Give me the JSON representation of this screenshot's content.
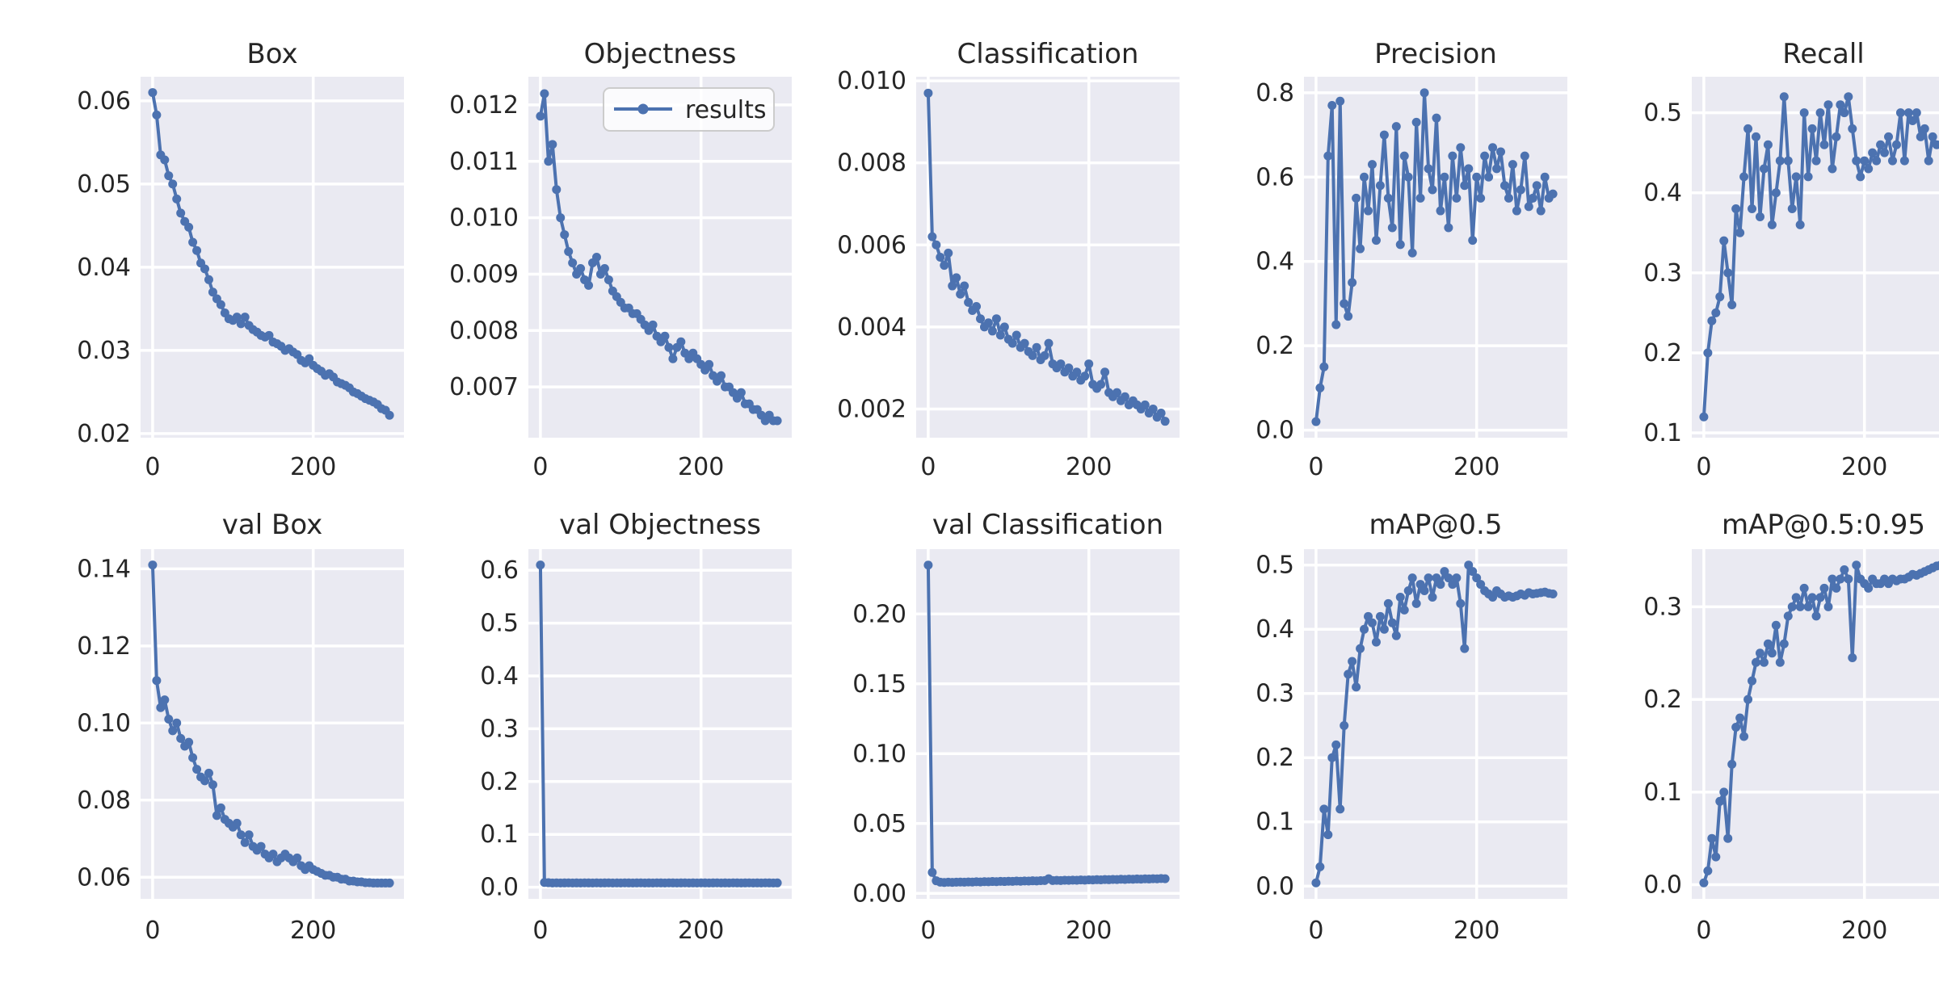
{
  "style": {
    "line_color": "#4c72b0",
    "axes_bg": "#eaeaf2",
    "grid_color": "#ffffff",
    "text_color": "#262626",
    "figure_bg": "#ffffff",
    "legend_bg": "rgba(255,255,255,0.8)",
    "legend_border": "#cccccc"
  },
  "chart_data": {
    "type": "line",
    "series_name": "results",
    "legend_position": "upper right of Objectness subplot",
    "grid": true,
    "xlim": [
      -15,
      313
    ],
    "xticks": [
      0,
      200
    ],
    "xtick_labels": [
      "0",
      "200"
    ],
    "epochs": [
      0,
      5,
      10,
      15,
      20,
      25,
      30,
      35,
      40,
      45,
      50,
      55,
      60,
      65,
      70,
      75,
      80,
      85,
      90,
      95,
      100,
      105,
      110,
      115,
      120,
      125,
      130,
      135,
      140,
      145,
      150,
      155,
      160,
      165,
      170,
      175,
      180,
      185,
      190,
      195,
      200,
      205,
      210,
      215,
      220,
      225,
      230,
      235,
      240,
      245,
      250,
      255,
      260,
      265,
      270,
      275,
      280,
      285,
      290,
      295
    ],
    "charts": [
      {
        "title": "Box",
        "row": 0,
        "col": 0,
        "ylim": [
          0.0195,
          0.0629
        ],
        "yticks": [
          0.02,
          0.03,
          0.04,
          0.05,
          0.06
        ],
        "ytick_labels": [
          "0.02",
          "0.03",
          "0.04",
          "0.05",
          "0.06"
        ],
        "values": [
          0.061,
          0.0583,
          0.0535,
          0.0529,
          0.051,
          0.05,
          0.0482,
          0.0465,
          0.0455,
          0.0448,
          0.043,
          0.042,
          0.0405,
          0.0398,
          0.0385,
          0.037,
          0.0362,
          0.0355,
          0.0345,
          0.0338,
          0.0336,
          0.034,
          0.0332,
          0.034,
          0.033,
          0.0325,
          0.0322,
          0.0318,
          0.0316,
          0.0318,
          0.031,
          0.0308,
          0.0305,
          0.03,
          0.0302,
          0.0298,
          0.0295,
          0.0288,
          0.0285,
          0.029,
          0.0282,
          0.0278,
          0.0275,
          0.027,
          0.0272,
          0.0268,
          0.0262,
          0.026,
          0.0258,
          0.0255,
          0.025,
          0.0248,
          0.0245,
          0.0242,
          0.024,
          0.0238,
          0.0235,
          0.023,
          0.0228,
          0.0222
        ]
      },
      {
        "title": "Objectness",
        "row": 0,
        "col": 1,
        "legend": {
          "label": "results"
        },
        "ylim": [
          0.0061,
          0.0125
        ],
        "yticks": [
          0.007,
          0.008,
          0.009,
          0.01,
          0.011,
          0.012
        ],
        "ytick_labels": [
          "0.007",
          "0.008",
          "0.009",
          "0.010",
          "0.011",
          "0.012"
        ],
        "values": [
          0.0118,
          0.0122,
          0.011,
          0.0113,
          0.0105,
          0.01,
          0.0097,
          0.0094,
          0.0092,
          0.009,
          0.0091,
          0.0089,
          0.0088,
          0.0092,
          0.0093,
          0.009,
          0.0091,
          0.0089,
          0.0087,
          0.0086,
          0.0085,
          0.0084,
          0.0084,
          0.0083,
          0.0083,
          0.0082,
          0.0081,
          0.008,
          0.0081,
          0.0079,
          0.0078,
          0.0079,
          0.0077,
          0.0075,
          0.0077,
          0.0078,
          0.0076,
          0.0075,
          0.0076,
          0.0075,
          0.0074,
          0.0073,
          0.0074,
          0.0072,
          0.0071,
          0.0072,
          0.007,
          0.007,
          0.0069,
          0.0068,
          0.0069,
          0.0067,
          0.0067,
          0.0066,
          0.0066,
          0.0065,
          0.0064,
          0.0065,
          0.0064,
          0.0064
        ]
      },
      {
        "title": "Classification",
        "row": 0,
        "col": 2,
        "ylim": [
          0.0013,
          0.0101
        ],
        "yticks": [
          0.002,
          0.004,
          0.006,
          0.008,
          0.01
        ],
        "ytick_labels": [
          "0.002",
          "0.004",
          "0.006",
          "0.008",
          "0.010"
        ],
        "values": [
          0.0097,
          0.0062,
          0.006,
          0.0057,
          0.0055,
          0.0058,
          0.005,
          0.0052,
          0.0048,
          0.005,
          0.0046,
          0.0044,
          0.0045,
          0.0042,
          0.004,
          0.0041,
          0.0039,
          0.0042,
          0.0038,
          0.004,
          0.0037,
          0.0036,
          0.0038,
          0.0035,
          0.0036,
          0.0034,
          0.0033,
          0.0035,
          0.0032,
          0.0033,
          0.0036,
          0.0031,
          0.003,
          0.0031,
          0.0029,
          0.003,
          0.0028,
          0.0029,
          0.0027,
          0.0028,
          0.0031,
          0.0026,
          0.0025,
          0.0026,
          0.0029,
          0.0024,
          0.0023,
          0.0024,
          0.0022,
          0.0023,
          0.0021,
          0.0022,
          0.0021,
          0.002,
          0.0021,
          0.0019,
          0.002,
          0.0018,
          0.0019,
          0.0017
        ]
      },
      {
        "title": "Precision",
        "row": 0,
        "col": 3,
        "ylim": [
          -0.018,
          0.838
        ],
        "yticks": [
          0.0,
          0.2,
          0.4,
          0.6,
          0.8
        ],
        "ytick_labels": [
          "0.0",
          "0.2",
          "0.4",
          "0.6",
          "0.8"
        ],
        "values": [
          0.02,
          0.1,
          0.15,
          0.65,
          0.77,
          0.25,
          0.78,
          0.3,
          0.27,
          0.35,
          0.55,
          0.43,
          0.6,
          0.52,
          0.63,
          0.45,
          0.58,
          0.7,
          0.55,
          0.48,
          0.72,
          0.44,
          0.65,
          0.6,
          0.42,
          0.73,
          0.55,
          0.8,
          0.62,
          0.57,
          0.74,
          0.52,
          0.6,
          0.48,
          0.65,
          0.55,
          0.67,
          0.58,
          0.62,
          0.45,
          0.6,
          0.55,
          0.65,
          0.6,
          0.67,
          0.62,
          0.66,
          0.58,
          0.55,
          0.63,
          0.52,
          0.57,
          0.65,
          0.53,
          0.55,
          0.58,
          0.52,
          0.6,
          0.55,
          0.56
        ]
      },
      {
        "title": "Recall",
        "row": 0,
        "col": 4,
        "ylim": [
          0.094,
          0.545
        ],
        "yticks": [
          0.1,
          0.2,
          0.3,
          0.4,
          0.5
        ],
        "ytick_labels": [
          "0.1",
          "0.2",
          "0.3",
          "0.4",
          "0.5"
        ],
        "values": [
          0.12,
          0.2,
          0.24,
          0.25,
          0.27,
          0.34,
          0.3,
          0.26,
          0.38,
          0.35,
          0.42,
          0.48,
          0.38,
          0.47,
          0.37,
          0.43,
          0.46,
          0.36,
          0.4,
          0.44,
          0.52,
          0.44,
          0.38,
          0.42,
          0.36,
          0.5,
          0.42,
          0.48,
          0.44,
          0.5,
          0.46,
          0.51,
          0.43,
          0.47,
          0.51,
          0.5,
          0.52,
          0.48,
          0.44,
          0.42,
          0.44,
          0.43,
          0.45,
          0.44,
          0.46,
          0.45,
          0.47,
          0.44,
          0.46,
          0.5,
          0.44,
          0.5,
          0.49,
          0.5,
          0.47,
          0.48,
          0.44,
          0.47,
          0.46,
          0.46
        ]
      },
      {
        "title": "val Box",
        "row": 1,
        "col": 0,
        "ylim": [
          0.0544,
          0.1451
        ],
        "yticks": [
          0.06,
          0.08,
          0.1,
          0.12,
          0.14
        ],
        "ytick_labels": [
          "0.06",
          "0.08",
          "0.10",
          "0.12",
          "0.14"
        ],
        "values": [
          0.141,
          0.111,
          0.104,
          0.106,
          0.101,
          0.098,
          0.1,
          0.096,
          0.094,
          0.095,
          0.091,
          0.088,
          0.086,
          0.085,
          0.087,
          0.084,
          0.076,
          0.078,
          0.075,
          0.074,
          0.073,
          0.074,
          0.071,
          0.069,
          0.071,
          0.068,
          0.067,
          0.068,
          0.066,
          0.065,
          0.066,
          0.064,
          0.065,
          0.066,
          0.065,
          0.064,
          0.065,
          0.063,
          0.062,
          0.063,
          0.062,
          0.0615,
          0.061,
          0.0605,
          0.0605,
          0.06,
          0.06,
          0.0595,
          0.0595,
          0.059,
          0.059,
          0.0588,
          0.0588,
          0.0586,
          0.0586,
          0.0585,
          0.0585,
          0.0585,
          0.0585,
          0.0585
        ]
      },
      {
        "title": "val Objectness",
        "row": 1,
        "col": 1,
        "ylim": [
          -0.022,
          0.64
        ],
        "yticks": [
          0.0,
          0.1,
          0.2,
          0.3,
          0.4,
          0.5,
          0.6
        ],
        "ytick_labels": [
          "0.0",
          "0.1",
          "0.2",
          "0.3",
          "0.4",
          "0.5",
          "0.6"
        ],
        "values": [
          0.61,
          0.009,
          0.0085,
          0.008,
          0.0082,
          0.008,
          0.0081,
          0.0082,
          0.008,
          0.0081,
          0.008,
          0.0082,
          0.0081,
          0.008,
          0.0082,
          0.008,
          0.0081,
          0.0082,
          0.008,
          0.0081,
          0.008,
          0.0082,
          0.0081,
          0.008,
          0.0081,
          0.0082,
          0.008,
          0.0081,
          0.008,
          0.0082,
          0.0081,
          0.008,
          0.0082,
          0.0081,
          0.008,
          0.0081,
          0.0082,
          0.008,
          0.0081,
          0.008,
          0.0082,
          0.0081,
          0.008,
          0.0081,
          0.0082,
          0.008,
          0.0081,
          0.008,
          0.0082,
          0.0081,
          0.008,
          0.0081,
          0.0082,
          0.008,
          0.0081,
          0.008,
          0.0082,
          0.0081,
          0.008,
          0.0081
        ]
      },
      {
        "title": "val Classification",
        "row": 1,
        "col": 2,
        "ylim": [
          -0.0039,
          0.2464
        ],
        "yticks": [
          0.0,
          0.05,
          0.1,
          0.15,
          0.2
        ],
        "ytick_labels": [
          "0.00",
          "0.05",
          "0.10",
          "0.15",
          "0.20"
        ],
        "values": [
          0.235,
          0.015,
          0.009,
          0.008,
          0.0078,
          0.008,
          0.0079,
          0.008,
          0.0081,
          0.008,
          0.0082,
          0.0081,
          0.0083,
          0.0082,
          0.0084,
          0.0083,
          0.0085,
          0.0084,
          0.0086,
          0.0085,
          0.0087,
          0.0086,
          0.0088,
          0.0087,
          0.0089,
          0.0088,
          0.009,
          0.0089,
          0.0091,
          0.0092,
          0.0105,
          0.0092,
          0.0093,
          0.0092,
          0.0094,
          0.0093,
          0.0095,
          0.0094,
          0.0096,
          0.0095,
          0.0097,
          0.0096,
          0.0098,
          0.0097,
          0.0099,
          0.0098,
          0.01,
          0.0099,
          0.0101,
          0.01,
          0.0102,
          0.0101,
          0.0103,
          0.0102,
          0.0104,
          0.0103,
          0.0105,
          0.0104,
          0.0106,
          0.0105
        ]
      },
      {
        "title": "mAP@0.5",
        "row": 1,
        "col": 3,
        "ylim": [
          -0.0198,
          0.5248
        ],
        "yticks": [
          0.0,
          0.1,
          0.2,
          0.3,
          0.4,
          0.5
        ],
        "ytick_labels": [
          "0.0",
          "0.1",
          "0.2",
          "0.3",
          "0.4",
          "0.5"
        ],
        "values": [
          0.005,
          0.03,
          0.12,
          0.08,
          0.2,
          0.22,
          0.12,
          0.25,
          0.33,
          0.35,
          0.31,
          0.37,
          0.4,
          0.42,
          0.41,
          0.38,
          0.42,
          0.4,
          0.44,
          0.41,
          0.39,
          0.45,
          0.43,
          0.46,
          0.48,
          0.44,
          0.47,
          0.46,
          0.48,
          0.45,
          0.48,
          0.47,
          0.49,
          0.48,
          0.47,
          0.48,
          0.44,
          0.37,
          0.5,
          0.49,
          0.48,
          0.47,
          0.46,
          0.455,
          0.45,
          0.46,
          0.455,
          0.45,
          0.452,
          0.45,
          0.452,
          0.455,
          0.453,
          0.457,
          0.455,
          0.456,
          0.457,
          0.458,
          0.456,
          0.455
        ]
      },
      {
        "title": "mAP@0.5:0.95",
        "row": 1,
        "col": 4,
        "ylim": [
          -0.0152,
          0.3622
        ],
        "yticks": [
          0.0,
          0.1,
          0.2,
          0.3
        ],
        "ytick_labels": [
          "0.0",
          "0.1",
          "0.2",
          "0.3"
        ],
        "values": [
          0.002,
          0.015,
          0.05,
          0.03,
          0.09,
          0.1,
          0.05,
          0.13,
          0.17,
          0.18,
          0.16,
          0.2,
          0.22,
          0.24,
          0.25,
          0.24,
          0.26,
          0.25,
          0.28,
          0.24,
          0.26,
          0.29,
          0.3,
          0.31,
          0.3,
          0.32,
          0.3,
          0.31,
          0.29,
          0.31,
          0.32,
          0.3,
          0.33,
          0.32,
          0.33,
          0.34,
          0.33,
          0.245,
          0.345,
          0.33,
          0.325,
          0.32,
          0.33,
          0.325,
          0.325,
          0.33,
          0.325,
          0.33,
          0.328,
          0.33,
          0.33,
          0.332,
          0.335,
          0.334,
          0.336,
          0.338,
          0.34,
          0.342,
          0.344,
          0.345
        ]
      }
    ]
  }
}
